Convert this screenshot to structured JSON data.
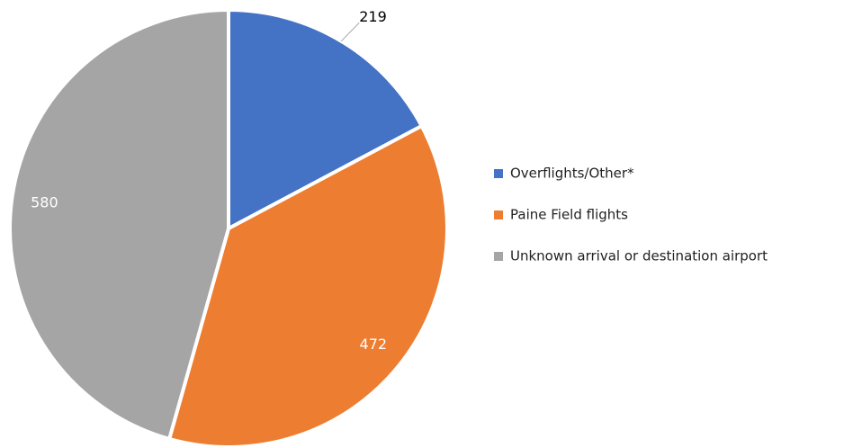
{
  "chart_data": {
    "type": "pie",
    "categories": [
      "Overflights/Other*",
      "Paine Field flights",
      "Unknown arrival or destination airport"
    ],
    "values": [
      219,
      472,
      580
    ],
    "colors": [
      "#4472c4",
      "#ed7d31",
      "#a5a5a5"
    ],
    "legend": "right"
  }
}
